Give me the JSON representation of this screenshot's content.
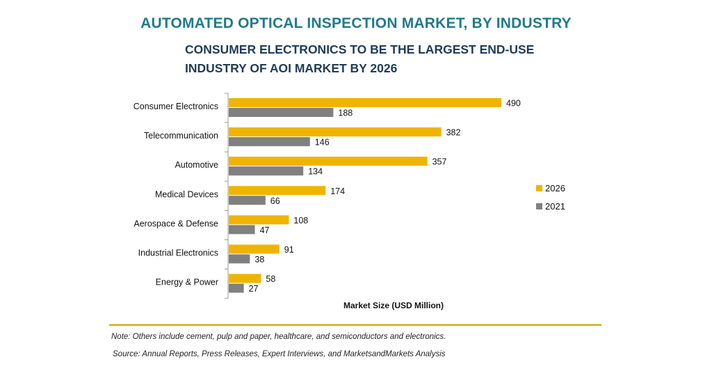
{
  "title": "AUTOMATED OPTICAL INSPECTION MARKET, BY INDUSTRY",
  "subtitle": "CONSUMER ELECTRONICS TO BE THE LARGEST END-USE INDUSTRY OF AOI MARKET BY 2026",
  "note": "Note: Others include cement, pulp and paper, healthcare, and semiconductors and electronics.",
  "source": "Source: Annual Reports, Press Releases, Expert Interviews, and MarketsandMarkets Analysis",
  "colors": {
    "2026": "#f0b400",
    "2021": "#808080",
    "title": "#1f7a8c",
    "subtitle": "#1f3b57",
    "rule": "#c8a400"
  },
  "chart_data": {
    "type": "bar",
    "orientation": "horizontal",
    "categories": [
      "Consumer Electronics",
      "Telecommunication",
      "Automotive",
      "Medical Devices",
      "Aerospace & Defense",
      "Industrial Electronics",
      "Energy & Power"
    ],
    "series": [
      {
        "name": "2026",
        "values": [
          490,
          382,
          357,
          174,
          108,
          91,
          58
        ]
      },
      {
        "name": "2021",
        "values": [
          188,
          146,
          134,
          66,
          47,
          38,
          27
        ]
      }
    ],
    "xlabel": "Market Size (USD Million)",
    "ylabel": "",
    "xlim": [
      0,
      490
    ],
    "grid": false,
    "legend": "right",
    "data_labels": true
  }
}
